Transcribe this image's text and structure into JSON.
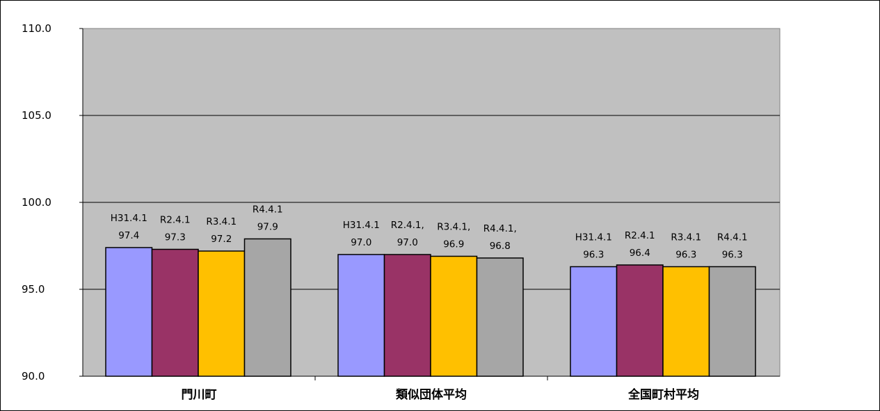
{
  "chart_data": {
    "type": "bar",
    "categories": [
      "門川町",
      "類似団体平均",
      "全国町村平均"
    ],
    "series": [
      {
        "values": [
          97.4,
          97.0,
          96.3
        ],
        "color": "#9999ff"
      },
      {
        "values": [
          97.3,
          97.0,
          96.4
        ],
        "color": "#993366"
      },
      {
        "values": [
          97.2,
          96.9,
          96.3
        ],
        "color": "#ffc000"
      },
      {
        "values": [
          97.9,
          96.8,
          96.3
        ],
        "color": "#a6a6a6"
      }
    ],
    "data_labels": [
      [
        [
          "H31.4.1",
          "97.4"
        ],
        [
          "R2.4.1",
          "97.3"
        ],
        [
          "R3.4.1",
          "97.2"
        ],
        [
          "R4.4.1",
          "97.9"
        ]
      ],
      [
        [
          "H31.4.1",
          "97.0"
        ],
        [
          "R2.4.1,",
          "97.0"
        ],
        [
          "R3.4.1,",
          "96.9"
        ],
        [
          "R4.4.1,",
          "96.8"
        ]
      ],
      [
        [
          "H31.4.1",
          "96.3"
        ],
        [
          "R2.4.1",
          "96.4"
        ],
        [
          "R3.4.1",
          "96.3"
        ],
        [
          "R4.4.1",
          "96.3"
        ]
      ]
    ],
    "yticks": [
      "90.0",
      "95.0",
      "100.0",
      "105.0",
      "110.0"
    ],
    "ylim": [
      90,
      110
    ],
    "grid": true,
    "legend": "none",
    "plot_background": "#c0c0c0",
    "title": "",
    "xlabel": "",
    "ylabel": ""
  }
}
